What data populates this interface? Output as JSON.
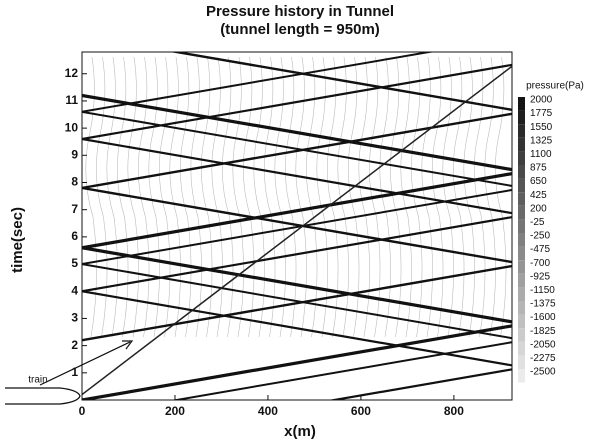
{
  "chart_data": {
    "type": "contour",
    "title": "Pressure history in Tunnel",
    "subtitle": "(tunnel length = 950m)",
    "x_label": "x(m)",
    "y_label": "time(sec)",
    "annotation": "train",
    "xlim": [
      0,
      925
    ],
    "xticks": [
      0,
      200,
      400,
      600,
      800
    ],
    "ylim": [
      0,
      12.8
    ],
    "yticks": [
      1,
      2,
      3,
      4,
      5,
      6,
      7,
      8,
      9,
      10,
      11,
      12
    ],
    "colorbar": {
      "title": "pressure(Pa)",
      "levels": [
        2000,
        1775,
        1550,
        1325,
        1100,
        875,
        650,
        425,
        200,
        -25,
        -250,
        -475,
        -700,
        -925,
        -1150,
        -1375,
        -1600,
        -1825,
        -2050,
        -2275,
        -2500
      ]
    }
  }
}
